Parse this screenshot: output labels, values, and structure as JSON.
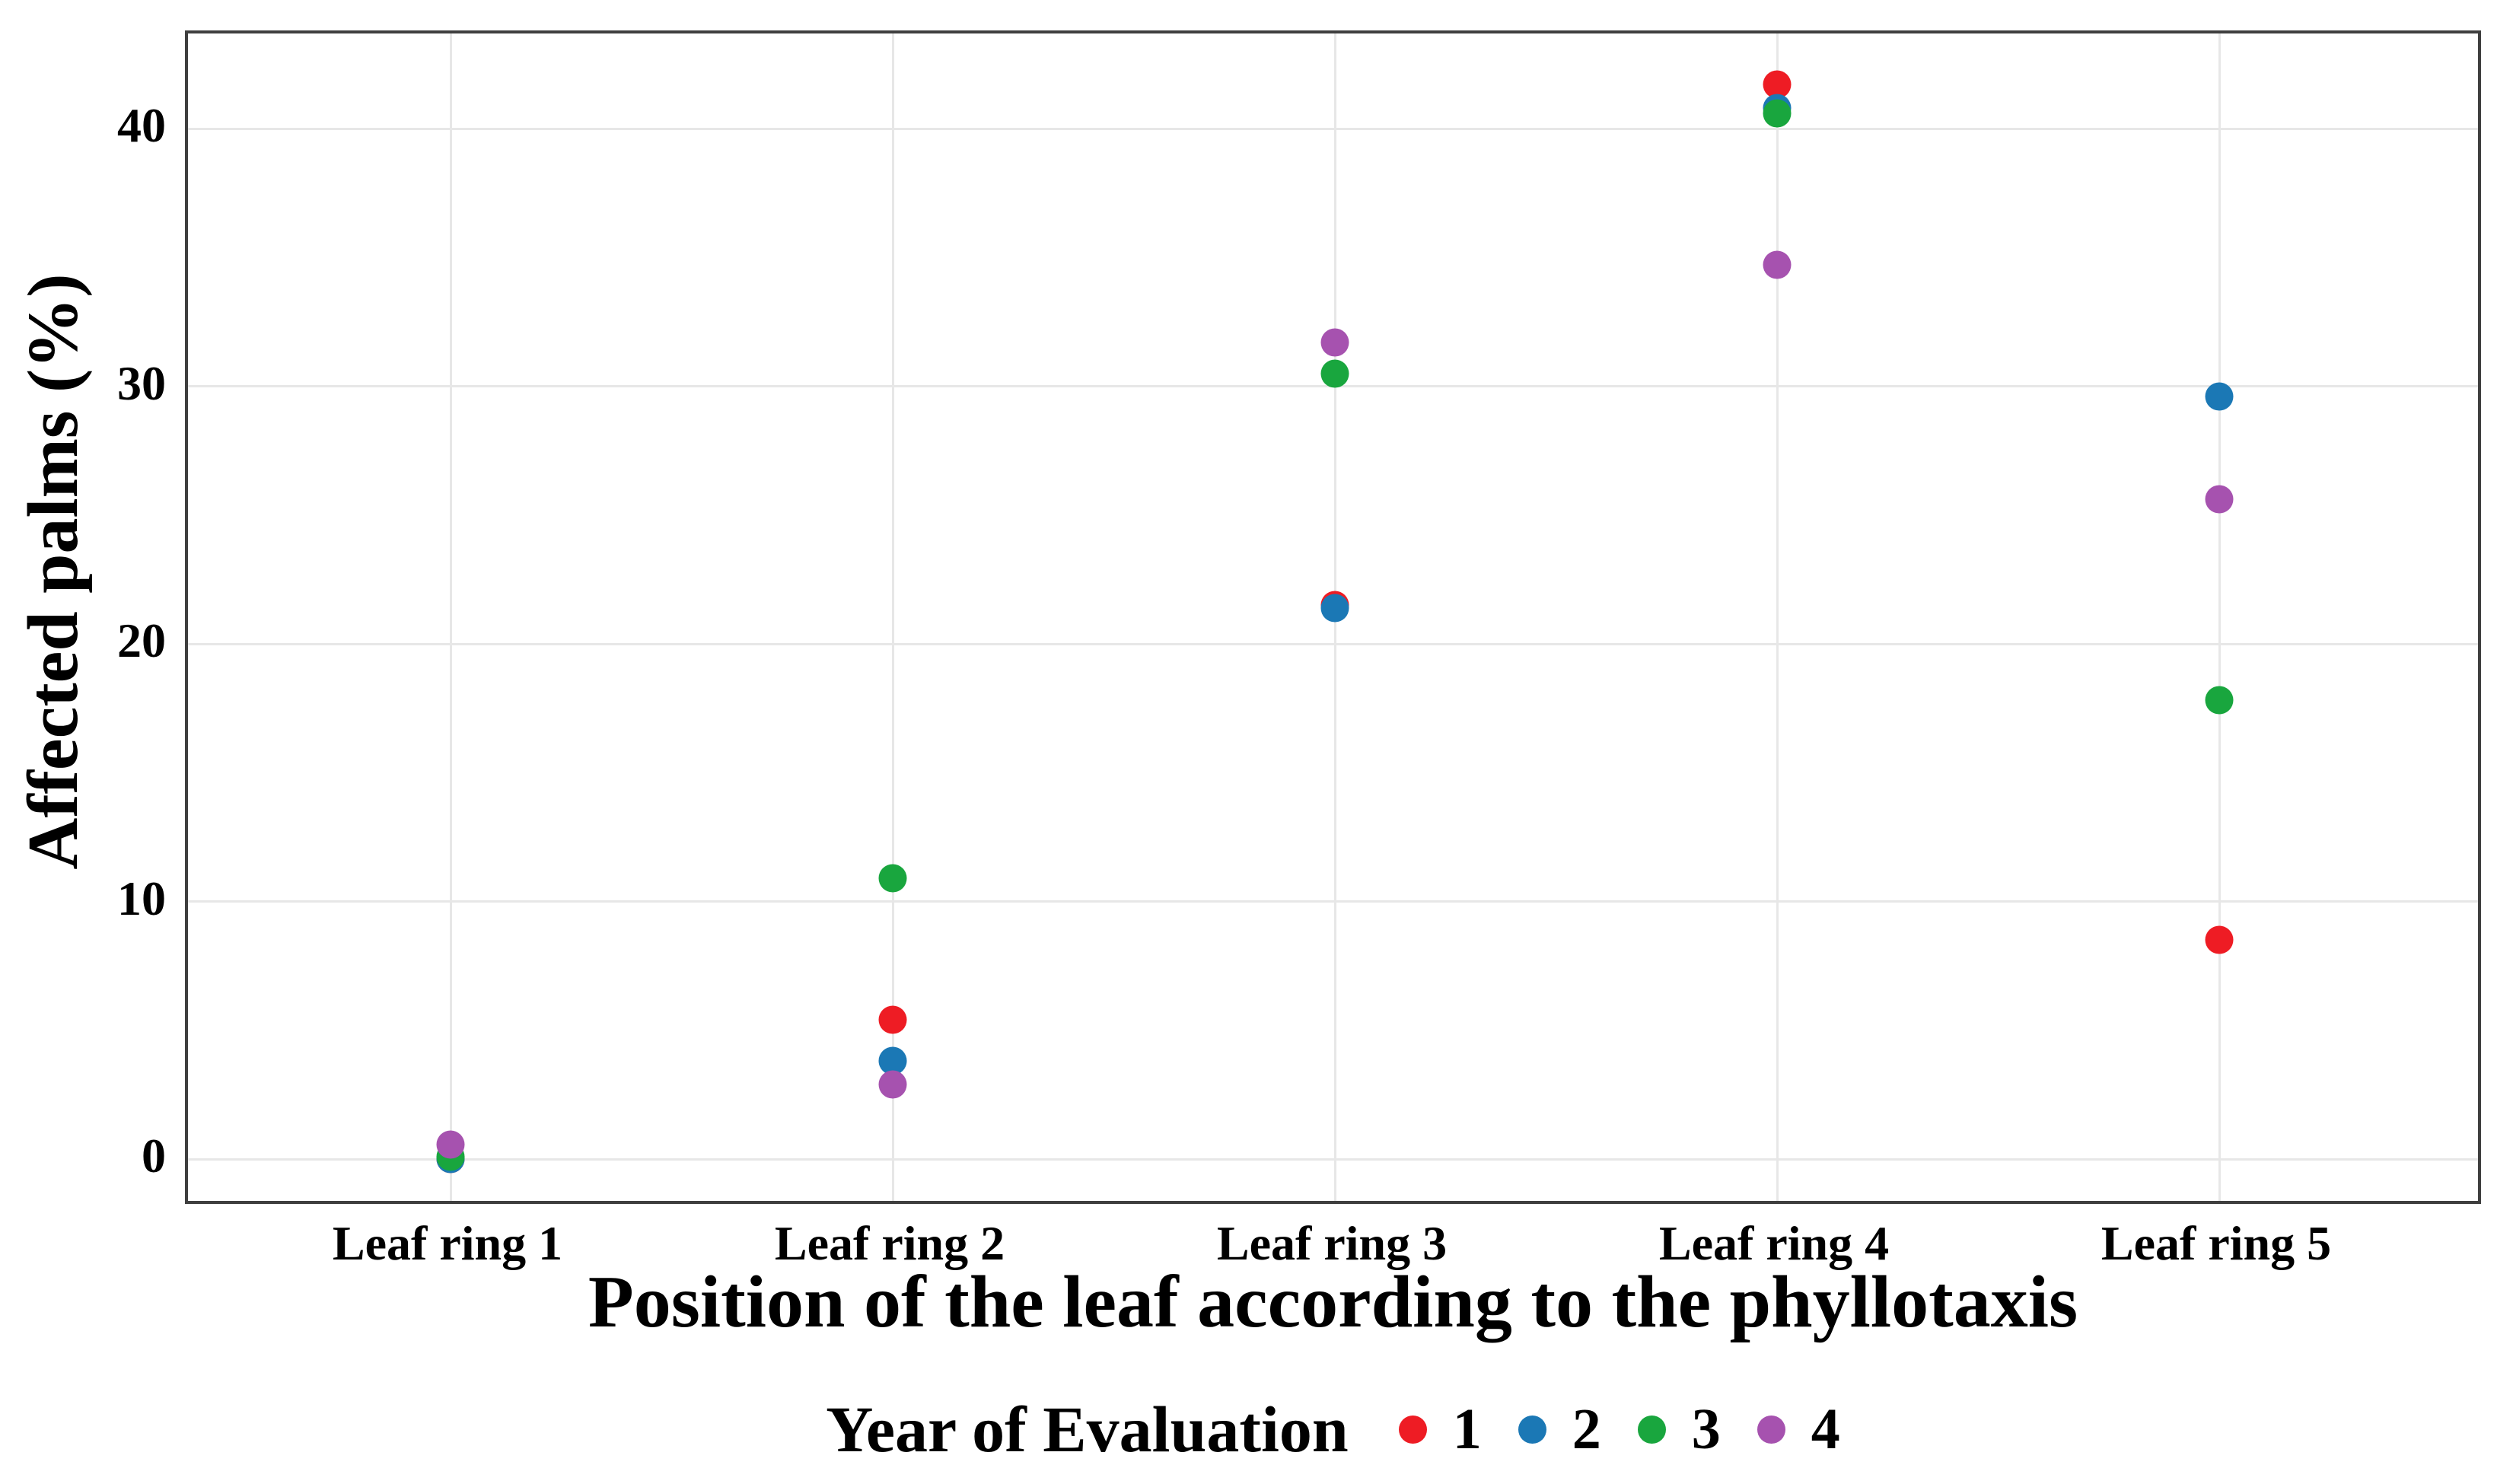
{
  "chart_data": {
    "type": "scatter",
    "title": "",
    "xlabel": "Position of the leaf according to the phyllotaxis",
    "ylabel": "Affected palms (%)",
    "categories": [
      "Leaf ring 1",
      "Leaf ring 2",
      "Leaf ring 3",
      "Leaf ring 4",
      "Leaf ring 5"
    ],
    "series": [
      {
        "name": "1",
        "color": "#ee1c24",
        "values": [
          0.0,
          5.4,
          21.5,
          41.7,
          8.5
        ]
      },
      {
        "name": "2",
        "color": "#1b78b5",
        "values": [
          0.0,
          3.8,
          21.4,
          40.8,
          29.6
        ]
      },
      {
        "name": "3",
        "color": "#19a63e",
        "values": [
          0.1,
          10.9,
          30.5,
          40.6,
          17.8
        ]
      },
      {
        "name": "4",
        "color": "#a652af",
        "values": [
          0.55,
          2.9,
          31.7,
          34.7,
          25.6
        ]
      }
    ],
    "y_ticks": [
      "0",
      "10",
      "20",
      "30",
      "40"
    ],
    "y_tick_values": [
      0,
      10,
      20,
      30,
      40
    ],
    "ylim": [
      -1.9,
      43.7
    ],
    "grid": true,
    "grid_color": "#e7e7e7",
    "panel_border_color": "#3f3f3f",
    "legend": {
      "title": "Year of Evaluation",
      "position": "bottom",
      "entries": [
        "1",
        "2",
        "3",
        "4"
      ]
    }
  }
}
